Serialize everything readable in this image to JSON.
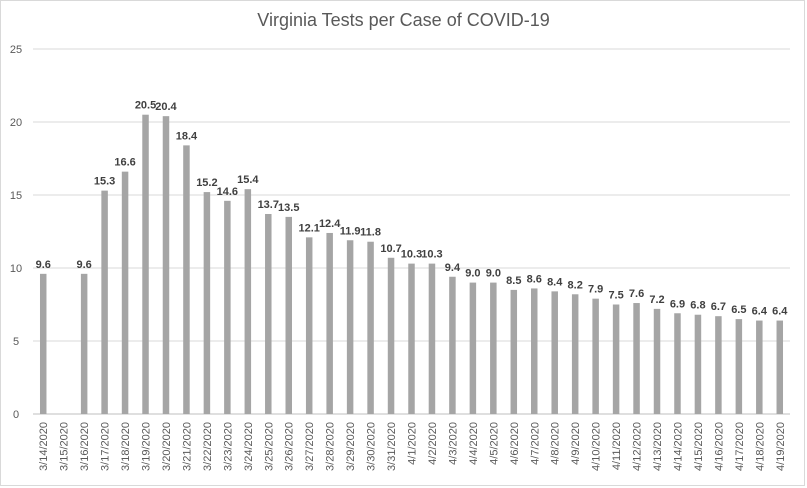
{
  "chart_data": {
    "type": "bar",
    "title": "Virginia Tests per Case of COVID-19",
    "xlabel": "",
    "ylabel": "",
    "ylim": [
      0,
      25
    ],
    "yticks": [
      0,
      5,
      10,
      15,
      20,
      25
    ],
    "grid": true,
    "legend": "none",
    "bar_color": "#a5a5a5",
    "categories": [
      "3/14/2020",
      "3/15/2020",
      "3/16/2020",
      "3/17/2020",
      "3/18/2020",
      "3/19/2020",
      "3/20/2020",
      "3/21/2020",
      "3/22/2020",
      "3/23/2020",
      "3/24/2020",
      "3/25/2020",
      "3/26/2020",
      "3/27/2020",
      "3/28/2020",
      "3/29/2020",
      "3/30/2020",
      "3/31/2020",
      "4/1/2020",
      "4/2/2020",
      "4/3/2020",
      "4/4/2020",
      "4/5/2020",
      "4/6/2020",
      "4/7/2020",
      "4/8/2020",
      "4/9/2020",
      "4/10/2020",
      "4/11/2020",
      "4/12/2020",
      "4/13/2020",
      "4/14/2020",
      "4/15/2020",
      "4/16/2020",
      "4/17/2020",
      "4/18/2020",
      "4/19/2020"
    ],
    "values": [
      9.6,
      null,
      9.6,
      15.3,
      16.6,
      20.5,
      20.4,
      18.4,
      15.2,
      14.6,
      15.4,
      13.7,
      13.5,
      12.1,
      12.4,
      11.9,
      11.8,
      10.7,
      10.3,
      10.3,
      9.4,
      9.0,
      9.0,
      8.5,
      8.6,
      8.4,
      8.2,
      7.9,
      7.5,
      7.6,
      7.2,
      6.9,
      6.8,
      6.7,
      6.5,
      6.4,
      6.4
    ],
    "data_labels": [
      "9.6",
      "",
      "9.6",
      "15.3",
      "16.6",
      "20.5",
      "20.4",
      "18.4",
      "15.2",
      "14.6",
      "15.4",
      "13.7",
      "13.5",
      "12.1",
      "12.4",
      "11.9",
      "11.8",
      "10.7",
      "10.3",
      "10.3",
      "9.4",
      "9.0",
      "9.0",
      "8.5",
      "8.6",
      "8.4",
      "8.2",
      "7.9",
      "7.5",
      "7.6",
      "7.2",
      "6.9",
      "6.8",
      "6.7",
      "6.5",
      "6.4",
      "6.4"
    ]
  }
}
